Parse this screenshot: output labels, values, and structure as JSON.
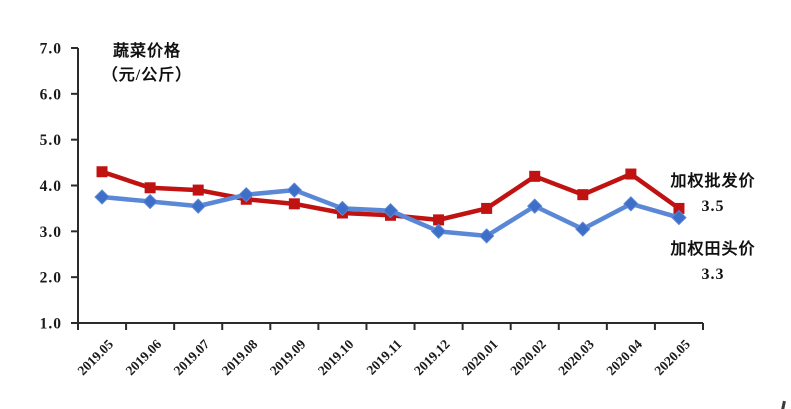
{
  "title": {
    "line1": "蔬菜价格",
    "line2": "（元/公斤）"
  },
  "colors": {
    "background": "#FFFFFF",
    "axis": "#2B2B2B",
    "tick_label": "#1A1A1A",
    "wholesale_red": "#C11212",
    "field_blue_line": "#5B87D7",
    "field_blue_marker": "#3E6FC8"
  },
  "chart_data": {
    "type": "line",
    "title": "蔬菜价格（元/公斤）",
    "categories": [
      "2019.05",
      "2019.06",
      "2019.07",
      "2019.08",
      "2019.09",
      "2019.10",
      "2019.11",
      "2019.12",
      "2020.01",
      "2020.02",
      "2020.03",
      "2020.04",
      "2020.05"
    ],
    "series": [
      {
        "name": "加权批发价",
        "marker": "square",
        "color": "#C11212",
        "marker_color": "#C11212",
        "values": [
          4.3,
          3.95,
          3.9,
          3.7,
          3.6,
          3.4,
          3.35,
          3.25,
          3.5,
          4.2,
          3.8,
          4.25,
          3.5
        ],
        "end_label": "3.5"
      },
      {
        "name": "加权田头价",
        "marker": "diamond",
        "color": "#5B87D7",
        "marker_color": "#3E6FC8",
        "values": [
          3.75,
          3.65,
          3.55,
          3.8,
          3.9,
          3.5,
          3.45,
          3.0,
          2.9,
          3.55,
          3.05,
          3.6,
          3.3
        ],
        "end_label": "3.3"
      }
    ],
    "ylim": [
      1.0,
      7.0
    ],
    "yticks": [
      7.0,
      6.0,
      5.0,
      4.0,
      3.0,
      2.0,
      1.0
    ],
    "ytick_decimals": 1,
    "x_rotation_deg": 45,
    "grid": false,
    "legend_position": "inline-right"
  }
}
